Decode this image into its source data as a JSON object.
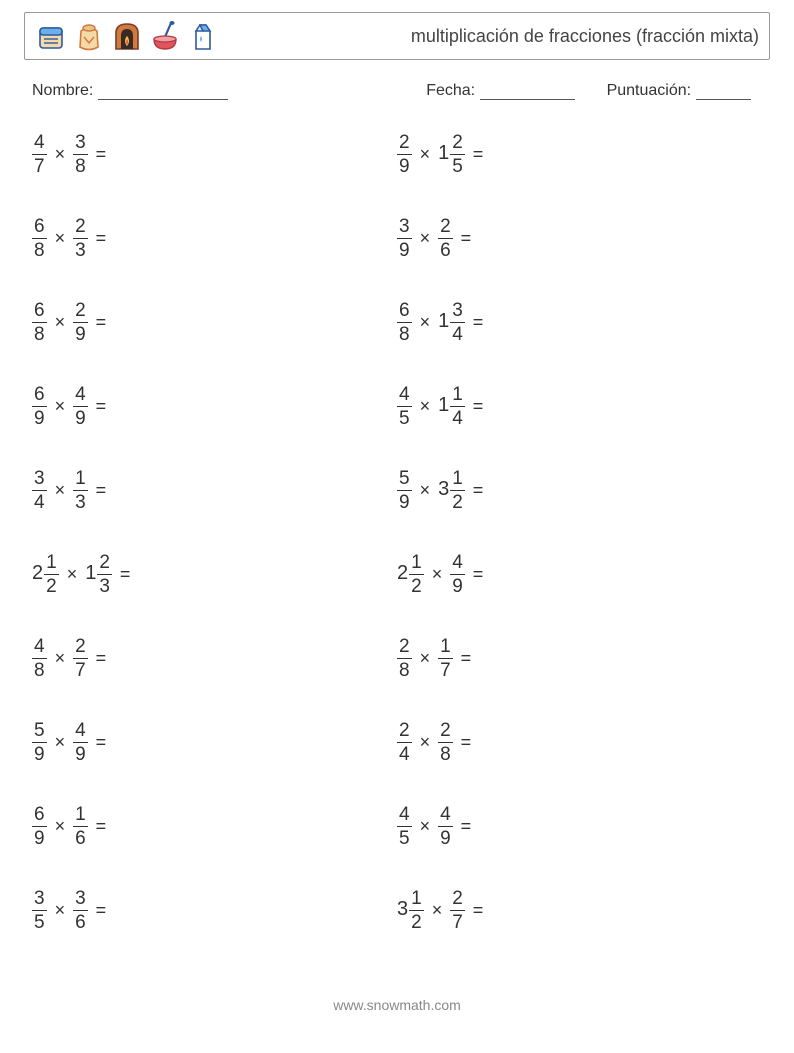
{
  "header": {
    "title": "multiplicación de fracciones (fracción mixta)",
    "icons": [
      "bread-icon",
      "flour-icon",
      "oven-icon",
      "bowl-icon",
      "milk-icon"
    ]
  },
  "labels": {
    "name": "Nombre:",
    "date": "Fecha:",
    "score": "Puntuación:"
  },
  "styling": {
    "page_bg": "#ffffff",
    "text_color": "#333333",
    "header_border": "#999999",
    "fraction_bar_color": "#333333",
    "footer_color": "#888888",
    "title_fontsize": 18,
    "label_fontsize": 16,
    "problem_fontsize": 20,
    "fraction_fontsize": 19,
    "row_gap": 32,
    "icon_colors": {
      "bread": {
        "fill": "#f5d9a8",
        "stroke": "#2c5aa0"
      },
      "flour": {
        "fill": "#f5d9a8",
        "stroke": "#d17a3a"
      },
      "oven": {
        "fill": "#d17a3a",
        "flame": "#f5c542",
        "stroke": "#7a3b2e"
      },
      "bowl": {
        "fill": "#e0555b",
        "spoon": "#2c5aa0"
      },
      "milk": {
        "fill": "#ffffff",
        "accent": "#6bb0e8",
        "stroke": "#2c5aa0"
      }
    }
  },
  "multiply_symbol": "×",
  "equals_symbol": "=",
  "columns": [
    [
      {
        "a": {
          "w": null,
          "n": "4",
          "d": "7"
        },
        "b": {
          "w": null,
          "n": "3",
          "d": "8"
        }
      },
      {
        "a": {
          "w": null,
          "n": "6",
          "d": "8"
        },
        "b": {
          "w": null,
          "n": "2",
          "d": "3"
        }
      },
      {
        "a": {
          "w": null,
          "n": "6",
          "d": "8"
        },
        "b": {
          "w": null,
          "n": "2",
          "d": "9"
        }
      },
      {
        "a": {
          "w": null,
          "n": "6",
          "d": "9"
        },
        "b": {
          "w": null,
          "n": "4",
          "d": "9"
        }
      },
      {
        "a": {
          "w": null,
          "n": "3",
          "d": "4"
        },
        "b": {
          "w": null,
          "n": "1",
          "d": "3"
        }
      },
      {
        "a": {
          "w": "2",
          "n": "1",
          "d": "2"
        },
        "b": {
          "w": "1",
          "n": "2",
          "d": "3"
        }
      },
      {
        "a": {
          "w": null,
          "n": "4",
          "d": "8"
        },
        "b": {
          "w": null,
          "n": "2",
          "d": "7"
        }
      },
      {
        "a": {
          "w": null,
          "n": "5",
          "d": "9"
        },
        "b": {
          "w": null,
          "n": "4",
          "d": "9"
        }
      },
      {
        "a": {
          "w": null,
          "n": "6",
          "d": "9"
        },
        "b": {
          "w": null,
          "n": "1",
          "d": "6"
        }
      },
      {
        "a": {
          "w": null,
          "n": "3",
          "d": "5"
        },
        "b": {
          "w": null,
          "n": "3",
          "d": "6"
        }
      }
    ],
    [
      {
        "a": {
          "w": null,
          "n": "2",
          "d": "9"
        },
        "b": {
          "w": "1",
          "n": "2",
          "d": "5"
        }
      },
      {
        "a": {
          "w": null,
          "n": "3",
          "d": "9"
        },
        "b": {
          "w": null,
          "n": "2",
          "d": "6"
        }
      },
      {
        "a": {
          "w": null,
          "n": "6",
          "d": "8"
        },
        "b": {
          "w": "1",
          "n": "3",
          "d": "4"
        }
      },
      {
        "a": {
          "w": null,
          "n": "4",
          "d": "5"
        },
        "b": {
          "w": "1",
          "n": "1",
          "d": "4"
        }
      },
      {
        "a": {
          "w": null,
          "n": "5",
          "d": "9"
        },
        "b": {
          "w": "3",
          "n": "1",
          "d": "2"
        }
      },
      {
        "a": {
          "w": "2",
          "n": "1",
          "d": "2"
        },
        "b": {
          "w": null,
          "n": "4",
          "d": "9"
        }
      },
      {
        "a": {
          "w": null,
          "n": "2",
          "d": "8"
        },
        "b": {
          "w": null,
          "n": "1",
          "d": "7"
        }
      },
      {
        "a": {
          "w": null,
          "n": "2",
          "d": "4"
        },
        "b": {
          "w": null,
          "n": "2",
          "d": "8"
        }
      },
      {
        "a": {
          "w": null,
          "n": "4",
          "d": "5"
        },
        "b": {
          "w": null,
          "n": "4",
          "d": "9"
        }
      },
      {
        "a": {
          "w": "3",
          "n": "1",
          "d": "2"
        },
        "b": {
          "w": null,
          "n": "2",
          "d": "7"
        }
      }
    ]
  ],
  "footer": "www.snowmath.com"
}
